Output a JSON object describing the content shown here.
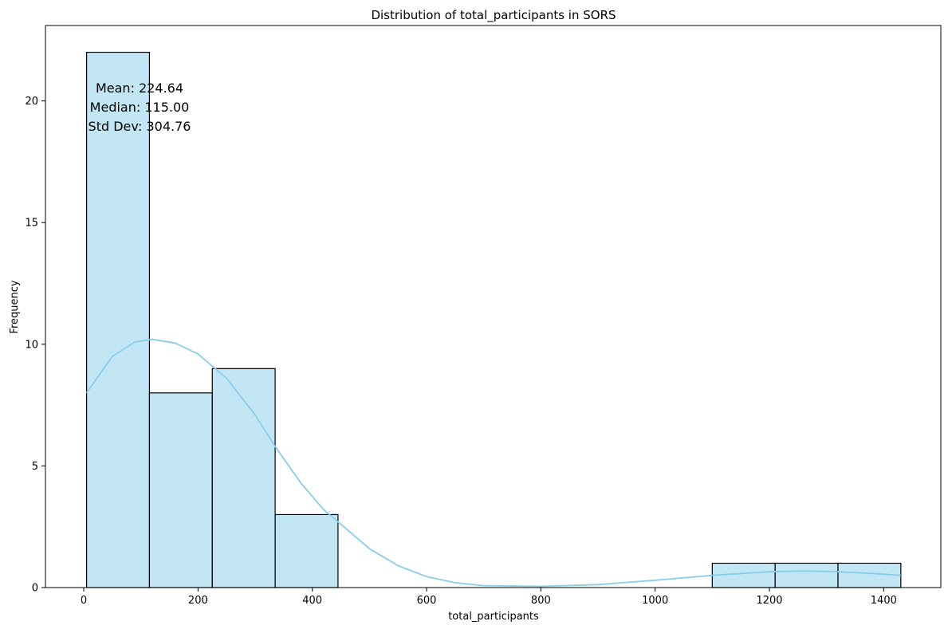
{
  "chart_data": {
    "type": "bar",
    "title": "Distribution of total_participants in SORS",
    "xlabel": "total_participants",
    "ylabel": "Frequency",
    "xlim": [
      -67,
      1500
    ],
    "ylim": [
      0,
      23.1
    ],
    "x_ticks": [
      0,
      200,
      400,
      600,
      800,
      1000,
      1200,
      1400
    ],
    "y_ticks": [
      0,
      5,
      10,
      15,
      20
    ],
    "bins": [
      {
        "x0": 5,
        "x1": 115,
        "count": 22
      },
      {
        "x0": 115,
        "x1": 225,
        "count": 8
      },
      {
        "x0": 225,
        "x1": 335,
        "count": 9
      },
      {
        "x0": 335,
        "x1": 445,
        "count": 3
      },
      {
        "x0": 1100,
        "x1": 1210,
        "count": 1
      },
      {
        "x0": 1210,
        "x1": 1320,
        "count": 1
      },
      {
        "x0": 1320,
        "x1": 1430,
        "count": 1
      }
    ],
    "kde": {
      "x": [
        5,
        50,
        90,
        120,
        160,
        200,
        250,
        300,
        335,
        380,
        420,
        445,
        500,
        550,
        600,
        650,
        700,
        800,
        900,
        1000,
        1100,
        1200,
        1260,
        1320,
        1380,
        1430
      ],
      "y": [
        8.0,
        9.5,
        10.1,
        10.2,
        10.05,
        9.6,
        8.6,
        7.1,
        5.8,
        4.3,
        3.2,
        2.7,
        1.6,
        0.9,
        0.45,
        0.2,
        0.08,
        0.05,
        0.12,
        0.3,
        0.5,
        0.65,
        0.68,
        0.65,
        0.58,
        0.5
      ]
    },
    "bar_color": "#87ceeb",
    "bar_opacity": 0.5,
    "kde_color": "#87ceeb",
    "annotation": [
      "Mean: 224.64",
      "Median: 115.00",
      "Std Dev: 304.76"
    ],
    "grid": false,
    "legend": "none"
  }
}
